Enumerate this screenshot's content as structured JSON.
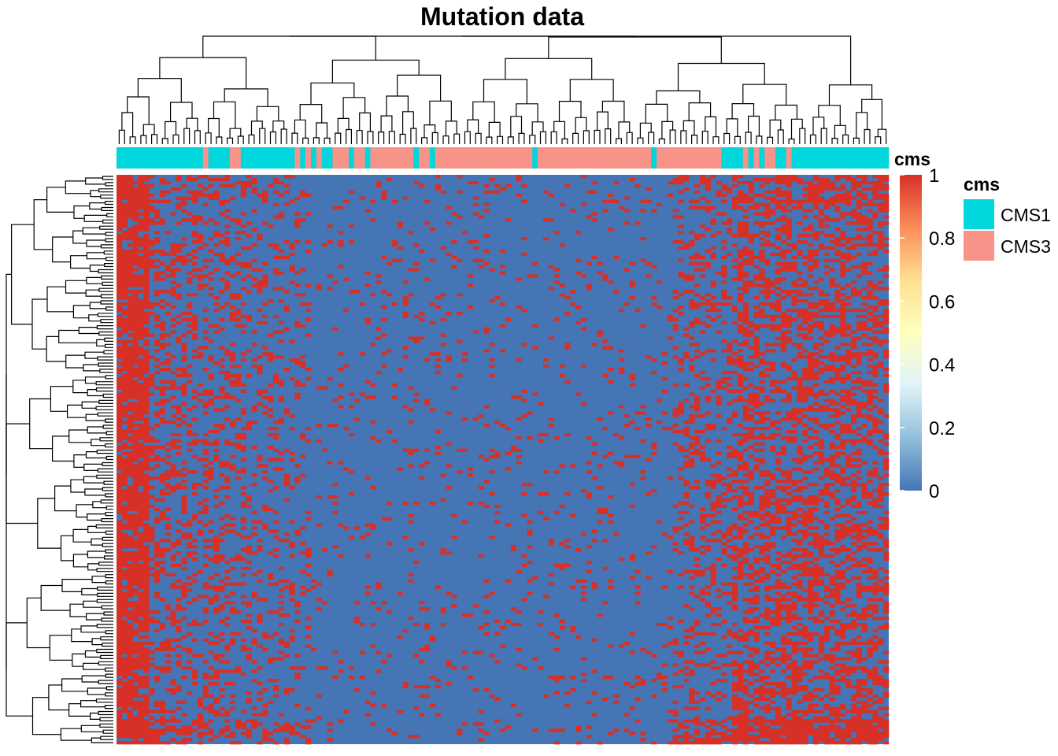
{
  "chart_data": {
    "type": "heatmap",
    "title": "Mutation data",
    "n_columns": 143,
    "n_rows": 183,
    "annotation": {
      "name": "cms",
      "column_classes": [
        "CMS1",
        "CMS1",
        "CMS1",
        "CMS1",
        "CMS1",
        "CMS1",
        "CMS1",
        "CMS1",
        "CMS1",
        "CMS1",
        "CMS1",
        "CMS1",
        "CMS1",
        "CMS1",
        "CMS1",
        "CMS1",
        "CMS3",
        "CMS1",
        "CMS1",
        "CMS1",
        "CMS1",
        "CMS3",
        "CMS3",
        "CMS1",
        "CMS1",
        "CMS1",
        "CMS1",
        "CMS1",
        "CMS1",
        "CMS1",
        "CMS1",
        "CMS1",
        "CMS1",
        "CMS3",
        "CMS1",
        "CMS3",
        "CMS1",
        "CMS3",
        "CMS1",
        "CMS1",
        "CMS3",
        "CMS3",
        "CMS3",
        "CMS1",
        "CMS3",
        "CMS3",
        "CMS1",
        "CMS3",
        "CMS3",
        "CMS3",
        "CMS3",
        "CMS3",
        "CMS3",
        "CMS3",
        "CMS3",
        "CMS1",
        "CMS3",
        "CMS3",
        "CMS1",
        "CMS3",
        "CMS3",
        "CMS3",
        "CMS3",
        "CMS3",
        "CMS3",
        "CMS3",
        "CMS3",
        "CMS3",
        "CMS3",
        "CMS3",
        "CMS3",
        "CMS3",
        "CMS3",
        "CMS3",
        "CMS3",
        "CMS3",
        "CMS3",
        "CMS1",
        "CMS3",
        "CMS3",
        "CMS3",
        "CMS3",
        "CMS3",
        "CMS3",
        "CMS3",
        "CMS3",
        "CMS3",
        "CMS3",
        "CMS3",
        "CMS3",
        "CMS3",
        "CMS3",
        "CMS3",
        "CMS3",
        "CMS3",
        "CMS3",
        "CMS3",
        "CMS3",
        "CMS3",
        "CMS1",
        "CMS3",
        "CMS3",
        "CMS3",
        "CMS3",
        "CMS3",
        "CMS3",
        "CMS3",
        "CMS3",
        "CMS3",
        "CMS3",
        "CMS3",
        "CMS3",
        "CMS1",
        "CMS1",
        "CMS1",
        "CMS1",
        "CMS3",
        "CMS1",
        "CMS3",
        "CMS1",
        "CMS3",
        "CMS3",
        "CMS1",
        "CMS1",
        "CMS3",
        "CMS1",
        "CMS1",
        "CMS1",
        "CMS1",
        "CMS1",
        "CMS1",
        "CMS1",
        "CMS1",
        "CMS1",
        "CMS1",
        "CMS1",
        "CMS1",
        "CMS1",
        "CMS1",
        "CMS1",
        "CMS1",
        "CMS1",
        "CMS1"
      ]
    },
    "values_description_scale": [
      0,
      1
    ],
    "colorbar_ticks": [
      "0",
      "0.2",
      "0.4",
      "0.6",
      "0.8",
      "1"
    ],
    "colorbar_colors": [
      "#4575b4",
      "#91bfdb",
      "#e0f3f8",
      "#ffffbf",
      "#fee090",
      "#fc8d59",
      "#d73027"
    ],
    "low_color": "#4575b4",
    "high_color": "#d73027",
    "legend": {
      "title": "cms",
      "items": [
        {
          "label": "CMS1",
          "color": "#00d7dc"
        },
        {
          "label": "CMS3",
          "color": "#f8938a"
        }
      ]
    },
    "cluster_notes": "rows and columns hierarchically clustered; dense mutation block at left and right column groups, bottom rows highly mutated",
    "grid": false
  }
}
